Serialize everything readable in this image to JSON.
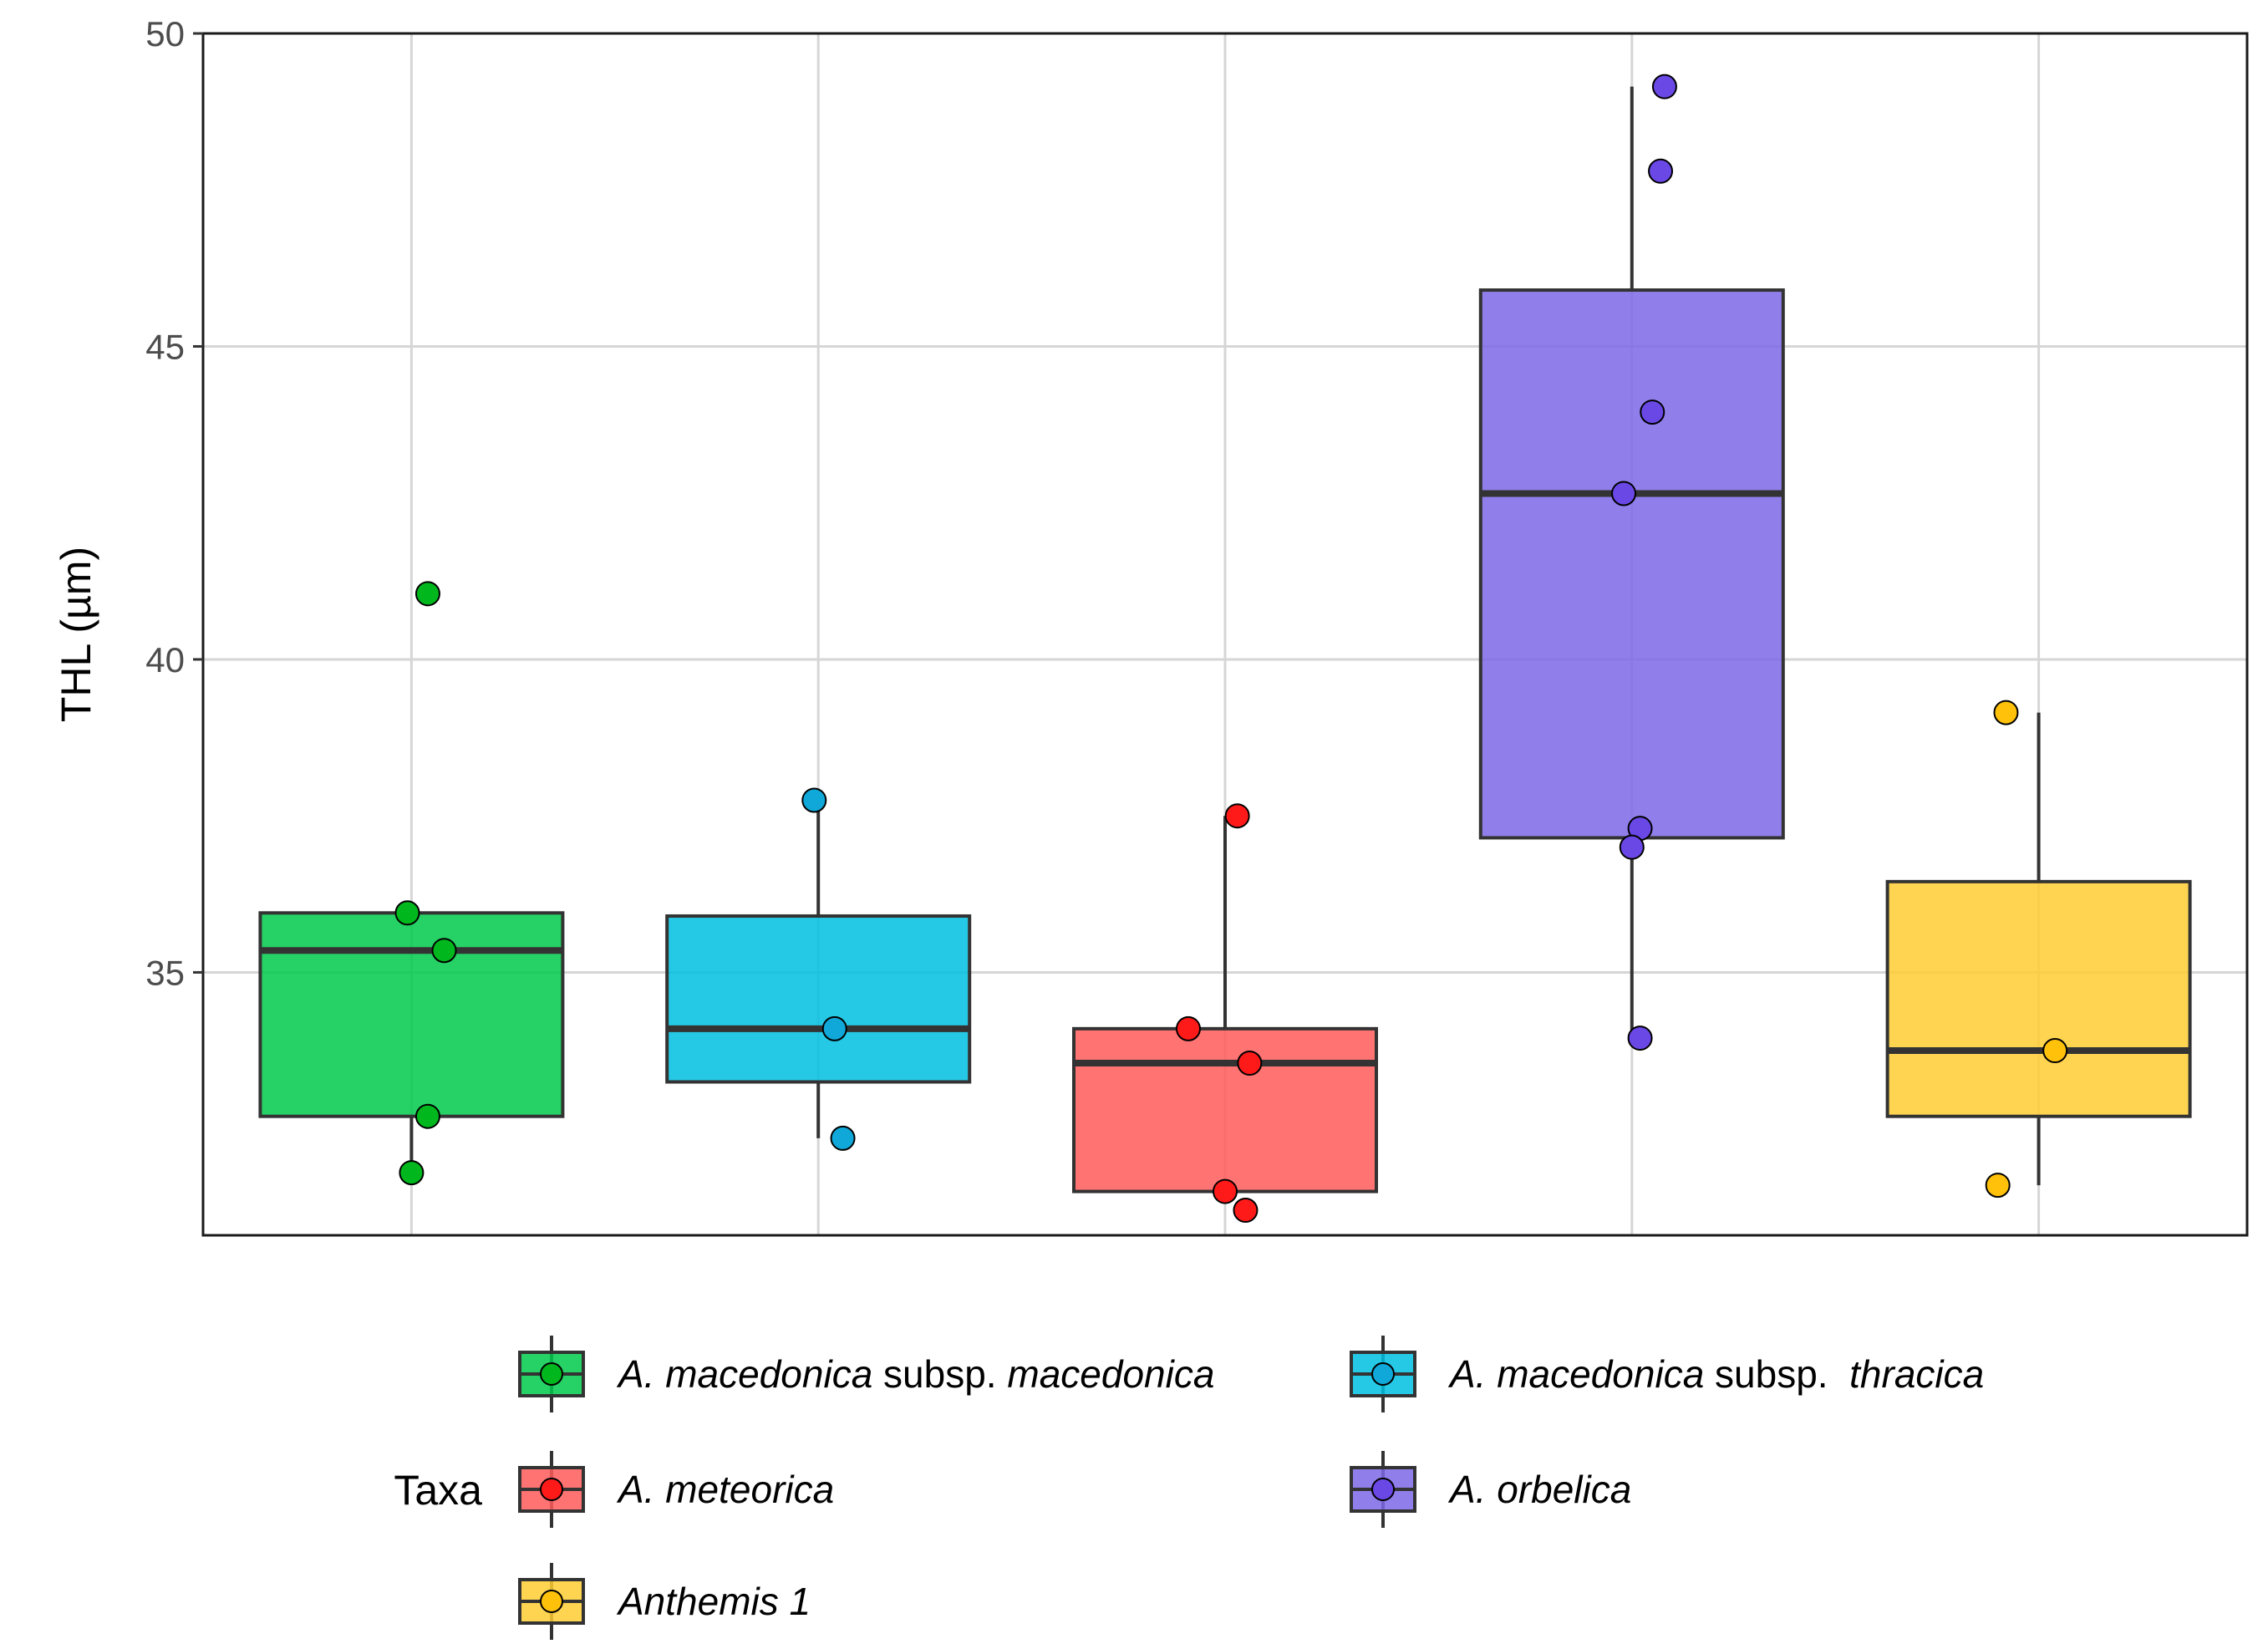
{
  "chart_data": {
    "type": "boxplot",
    "title": "",
    "xlabel": "",
    "ylabel": "THL (µm)",
    "ylim": [
      30.8,
      50
    ],
    "yticks": [
      35,
      40,
      45,
      50
    ],
    "grid": true,
    "legend_title": "Taxa",
    "legend_position": "bottom",
    "series": [
      {
        "name": "A. macedonica subsp. macedonica",
        "label_parts": [
          {
            "text": "A. macedonica",
            "italic": true
          },
          {
            "text": " subsp. ",
            "italic": false
          },
          {
            "text": "macedonica",
            "italic": true
          }
        ],
        "color": "#00c94a",
        "point_color": "#00b81e",
        "box": {
          "lower_whisker": 31.8,
          "q1": 32.7,
          "median": 35.35,
          "q3": 35.95,
          "upper_whisker": 35.95
        },
        "points": [
          41.05,
          35.95,
          35.35,
          32.7,
          31.8
        ],
        "jitter": [
          0.04,
          -0.01,
          0.08,
          0.04,
          0.0
        ]
      },
      {
        "name": "A. macedonica subsp. thracica",
        "label_parts": [
          {
            "text": "A. macedonica",
            "italic": true
          },
          {
            "text": " subsp.  ",
            "italic": false
          },
          {
            "text": "thracica",
            "italic": true
          }
        ],
        "color": "#00c0e0",
        "point_color": "#10a8d8",
        "box": {
          "lower_whisker": 32.35,
          "q1": 33.25,
          "median": 34.1,
          "q3": 35.9,
          "upper_whisker": 37.75
        },
        "points": [
          37.75,
          34.1,
          32.35
        ],
        "jitter": [
          -0.01,
          0.04,
          0.06
        ]
      },
      {
        "name": "A. meteorica",
        "label_parts": [
          {
            "text": "A. meteorica",
            "italic": true
          }
        ],
        "color": "#ff5a5a",
        "point_color": "#ff1a1a",
        "box": {
          "lower_whisker": 31.5,
          "q1": 31.5,
          "median": 33.55,
          "q3": 34.1,
          "upper_whisker": 37.5
        },
        "points": [
          37.5,
          34.1,
          33.55,
          31.5,
          31.2
        ],
        "jitter": [
          0.03,
          -0.09,
          0.06,
          0.0,
          0.05
        ]
      },
      {
        "name": "A. orbelica",
        "label_parts": [
          {
            "text": "A. orbelica",
            "italic": true
          }
        ],
        "color": "#7c68e8",
        "point_color": "#6a48e6",
        "box": {
          "lower_whisker": 33.95,
          "q1": 37.15,
          "median": 42.65,
          "q3": 45.9,
          "upper_whisker": 49.15
        },
        "points": [
          49.15,
          47.8,
          43.95,
          42.65,
          37.3,
          37.0,
          33.95
        ],
        "jitter": [
          0.08,
          0.07,
          0.05,
          -0.02,
          0.02,
          0.0,
          0.02
        ]
      },
      {
        "name": "Anthemis 1",
        "label_parts": [
          {
            "text": "Anthemis 1",
            "italic": true
          }
        ],
        "color": "#ffcc33",
        "point_color": "#ffc10a",
        "box": {
          "lower_whisker": 31.6,
          "q1": 32.7,
          "median": 33.75,
          "q3": 36.45,
          "upper_whisker": 39.15
        },
        "points": [
          39.15,
          33.75,
          31.6
        ],
        "jitter": [
          -0.08,
          0.04,
          -0.1
        ]
      }
    ]
  }
}
